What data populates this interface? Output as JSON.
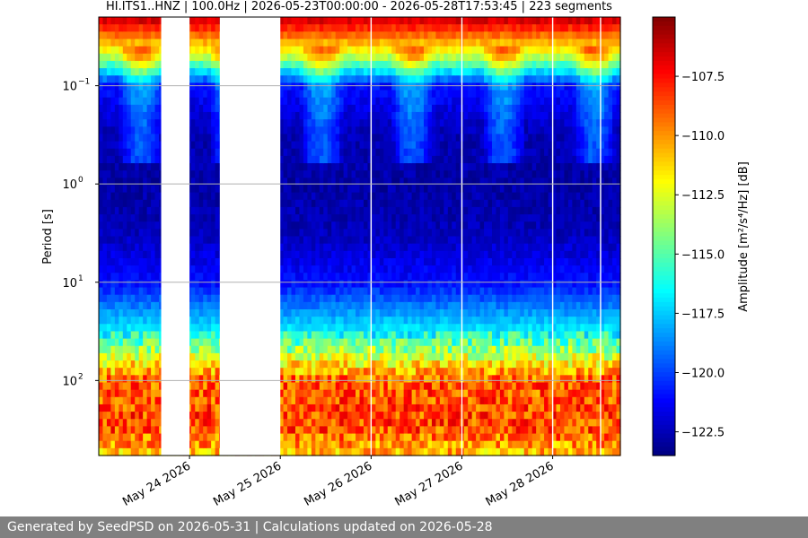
{
  "chart_data": {
    "type": "heatmap",
    "title": "HI.ITS1..HNZ | 100.0Hz | 2026-05-23T00:00:00 - 2026-05-28T17:53:45 | 223 segments",
    "xlabel": "",
    "ylabel": "Period [s]",
    "x_axis": {
      "scale": "time",
      "range": [
        "2026-05-23T00:00:00",
        "2026-05-28T17:53:45"
      ],
      "ticks": [
        {
          "value": "2026-05-24",
          "label": "May 24 2026"
        },
        {
          "value": "2026-05-25",
          "label": "May 25 2026"
        },
        {
          "value": "2026-05-26",
          "label": "May 26 2026"
        },
        {
          "value": "2026-05-27",
          "label": "May 27 2026"
        },
        {
          "value": "2026-05-28",
          "label": "May 28 2026"
        }
      ]
    },
    "y_axis": {
      "scale": "log",
      "inverted": true,
      "range": [
        0.02,
        580
      ],
      "ticks": [
        {
          "value": 0.1,
          "label": "10",
          "exp": "−1"
        },
        {
          "value": 1,
          "label": "10",
          "exp": "0"
        },
        {
          "value": 10,
          "label": "10",
          "exp": "1"
        },
        {
          "value": 100,
          "label": "10",
          "exp": "2"
        }
      ],
      "grid": true
    },
    "colorbar": {
      "label": "Amplitude [m²/s⁴/Hz] [dB]",
      "colormap": "jet",
      "range": [
        -123.5,
        -105
      ],
      "ticks": [
        {
          "value": -107.5,
          "label": "−107.5"
        },
        {
          "value": -110.0,
          "label": "−110.0"
        },
        {
          "value": -112.5,
          "label": "−112.5"
        },
        {
          "value": -115.0,
          "label": "−115.0"
        },
        {
          "value": -117.5,
          "label": "−117.5"
        },
        {
          "value": -120.0,
          "label": "−120.0"
        },
        {
          "value": -122.5,
          "label": "−122.5"
        }
      ]
    },
    "data_gaps": [
      {
        "start": "2026-05-23T16:30:00",
        "end": "2026-05-24T00:00:00"
      },
      {
        "start": "2026-05-24T08:00:00",
        "end": "2026-05-25T00:00:00"
      },
      {
        "start": "2026-05-25T23:50:00",
        "end": "2026-05-26T00:10:00"
      },
      {
        "start": "2026-05-26T23:50:00",
        "end": "2026-05-27T00:10:00"
      },
      {
        "start": "2026-05-27T23:50:00",
        "end": "2026-05-28T00:10:00"
      },
      {
        "start": "2026-05-28T12:30:00",
        "end": "2026-05-28T12:50:00"
      }
    ],
    "approx_profile": {
      "period_s": [
        0.02,
        0.05,
        0.1,
        0.3,
        1,
        3,
        10,
        30,
        100,
        300,
        580
      ],
      "amplitude_db": [
        -106,
        -113,
        -121,
        -122.5,
        -122.8,
        -122.5,
        -121,
        -117,
        -109,
        -108.5,
        -111
      ]
    }
  },
  "footer": {
    "text": "Generated by SeedPSD on 2026-05-31 | Calculations updated on 2026-05-28"
  }
}
